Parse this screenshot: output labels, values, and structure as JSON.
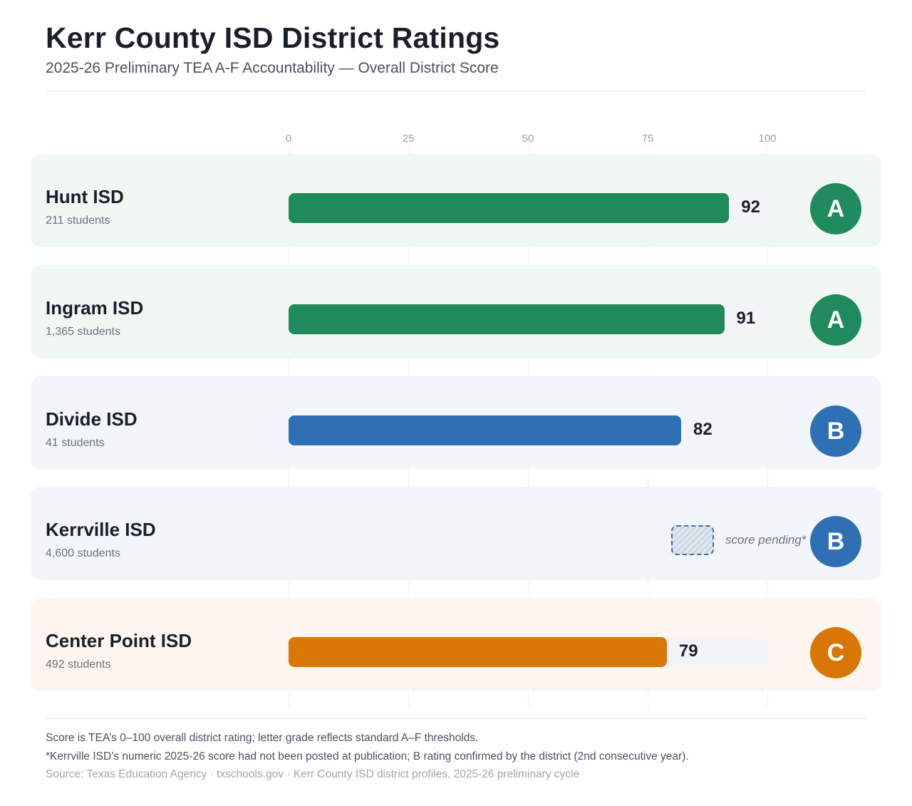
{
  "header": {
    "title": "Kerr County ISD District Ratings",
    "subtitle": "2025-26 Preliminary TEA A-F Accountability — Overall District Score"
  },
  "colors": {
    "A": "#1f8a5b",
    "B": "#2f6fb4",
    "C": "#d97706",
    "row_A": "#f1f8f4",
    "row_B": "#f2f6fa",
    "row_C": "#fef6ee"
  },
  "chart_data": {
    "type": "bar",
    "orientation": "horizontal",
    "x_ticks": [
      "0",
      "25",
      "50",
      "75",
      "100"
    ],
    "xlim": [
      0,
      100
    ],
    "grid": true,
    "categories": [
      "Hunt ISD",
      "Ingram ISD",
      "Divide ISD",
      "Kerrville ISD",
      "Center Point ISD"
    ],
    "values": [
      92,
      91,
      82,
      null,
      79
    ],
    "students": [
      "211 students",
      "1,365 students",
      "41 students",
      "4,600 students",
      "492 students"
    ],
    "grades": [
      "A",
      "A",
      "B",
      "B",
      "C"
    ],
    "pending_label": "score pending*"
  },
  "footer": {
    "note1": "Score is TEA’s 0–100 overall district rating; letter grade reflects standard A–F thresholds.",
    "note2": "*Kerrville ISD’s numeric 2025-26 score had not been posted at publication; B rating confirmed by the district (2nd consecutive year).",
    "source": "Source: Texas Education Agency · txschools.gov · Kerr County ISD district profiles, 2025-26 preliminary cycle"
  }
}
